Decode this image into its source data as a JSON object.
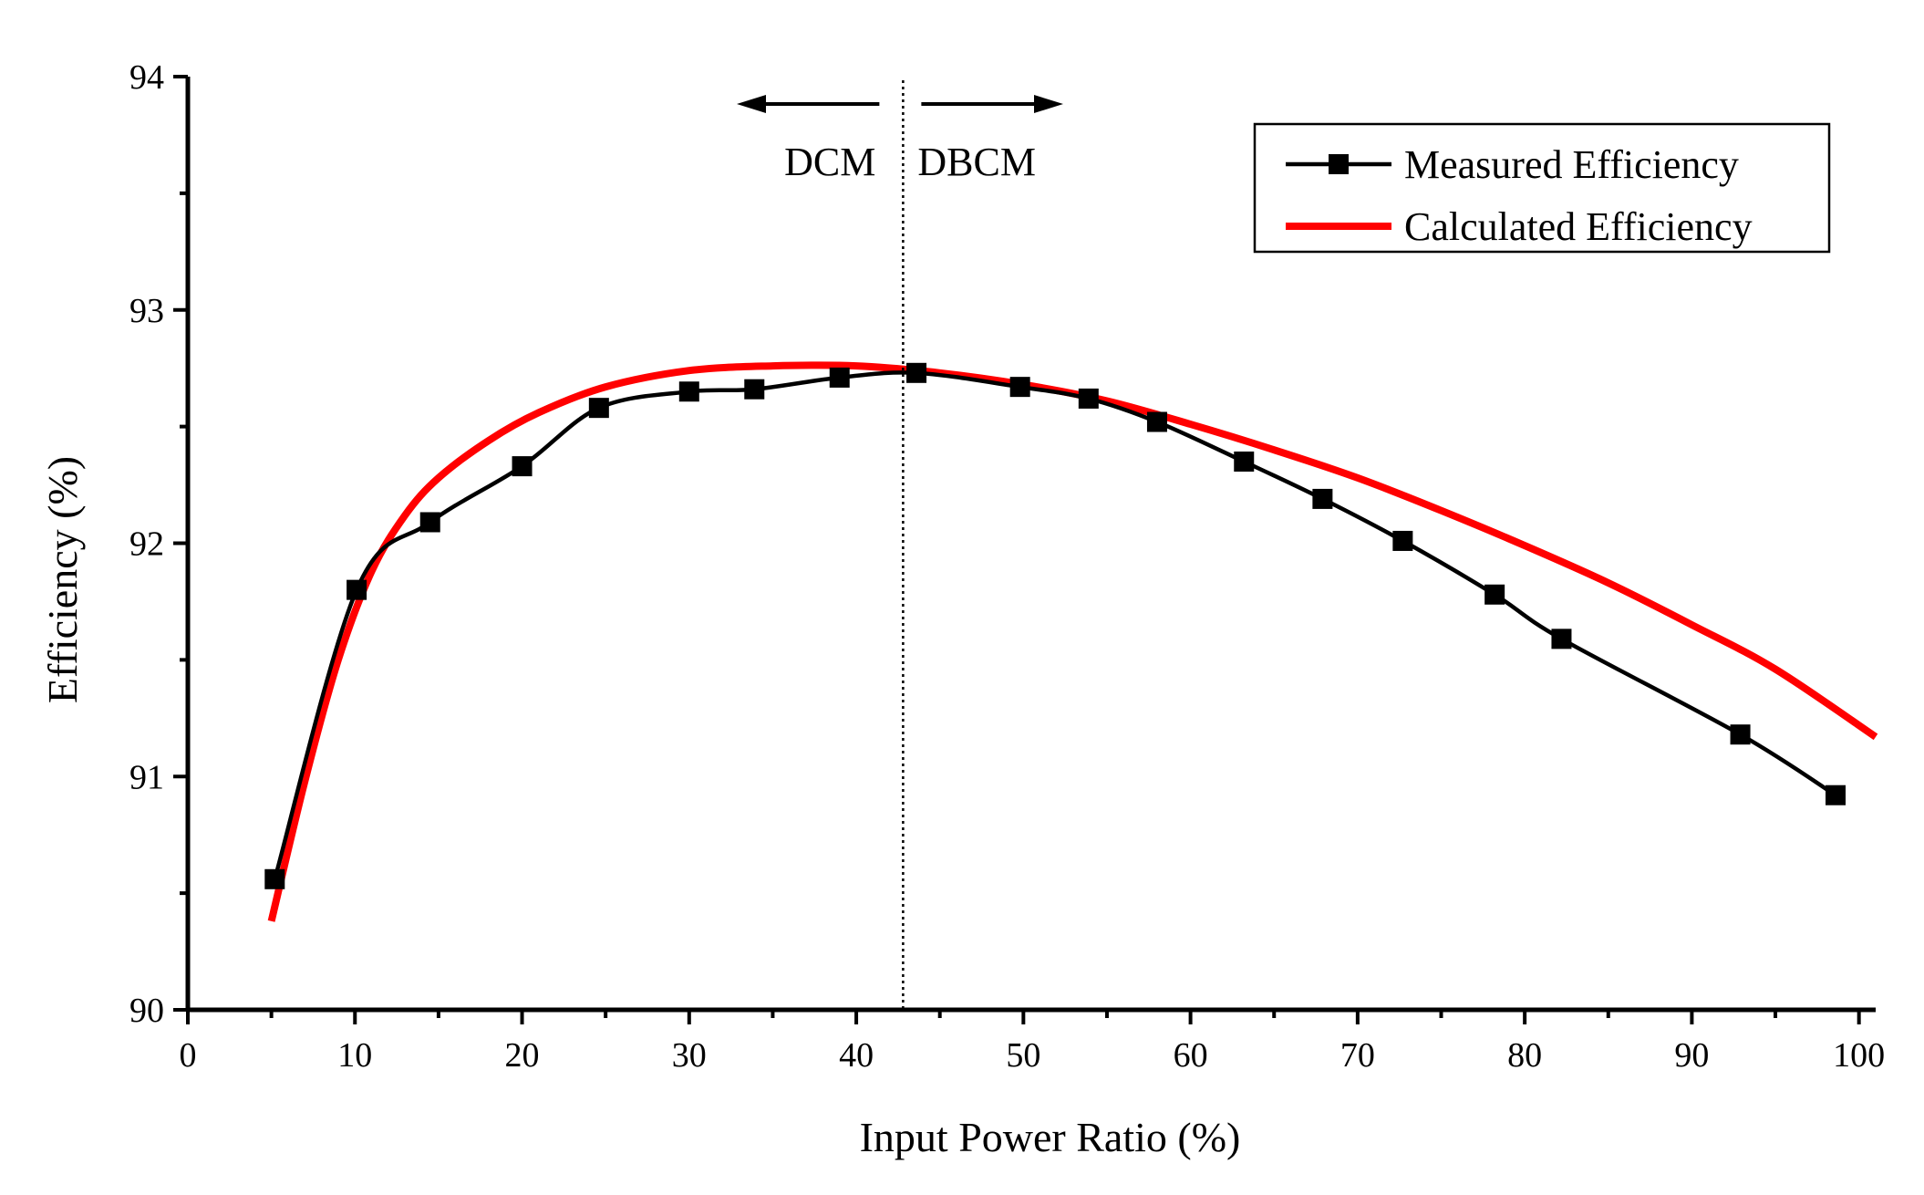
{
  "chart_data": {
    "type": "line",
    "title": "",
    "xlabel": "Input Power Ratio (%)",
    "ylabel": "Efficiency (%)",
    "xlim": [
      0,
      101
    ],
    "ylim": [
      90,
      94
    ],
    "xticks": [
      0,
      10,
      20,
      30,
      40,
      50,
      60,
      70,
      80,
      90,
      100
    ],
    "yticks": [
      90,
      91,
      92,
      93,
      94
    ],
    "grid": false,
    "legend_position": "top-right",
    "series": [
      {
        "name": "Measured Efficiency",
        "color": "#000000",
        "marker": "square",
        "x": [
          5.2,
          10.1,
          14.5,
          20.0,
          24.6,
          30.0,
          33.9,
          39.0,
          43.6,
          49.8,
          53.9,
          58.0,
          63.2,
          67.9,
          72.7,
          78.2,
          82.2,
          92.9,
          98.6
        ],
        "y": [
          90.56,
          91.8,
          92.09,
          92.33,
          92.58,
          92.65,
          92.66,
          92.71,
          92.73,
          92.67,
          92.62,
          92.52,
          92.35,
          92.19,
          92.01,
          91.78,
          91.59,
          91.18,
          90.92
        ]
      },
      {
        "name": "Calculated Efficiency",
        "color": "#ff0000",
        "marker": "none",
        "x": [
          5.0,
          7.0,
          9.0,
          11.0,
          13.0,
          15.0,
          18.0,
          21.0,
          25.0,
          30.0,
          35.0,
          40.0,
          45.0,
          50.0,
          55.0,
          60.0,
          65.0,
          70.0,
          75.0,
          80.0,
          85.0,
          90.0,
          95.0,
          101.0
        ],
        "y": [
          90.38,
          90.98,
          91.5,
          91.88,
          92.12,
          92.28,
          92.44,
          92.56,
          92.67,
          92.74,
          92.76,
          92.76,
          92.73,
          92.68,
          92.61,
          92.51,
          92.4,
          92.28,
          92.14,
          91.99,
          91.83,
          91.65,
          91.46,
          91.17
        ]
      }
    ],
    "annotations": {
      "divider_x": 42.8,
      "left_mode": "DCM",
      "right_mode": "DBCM"
    }
  }
}
